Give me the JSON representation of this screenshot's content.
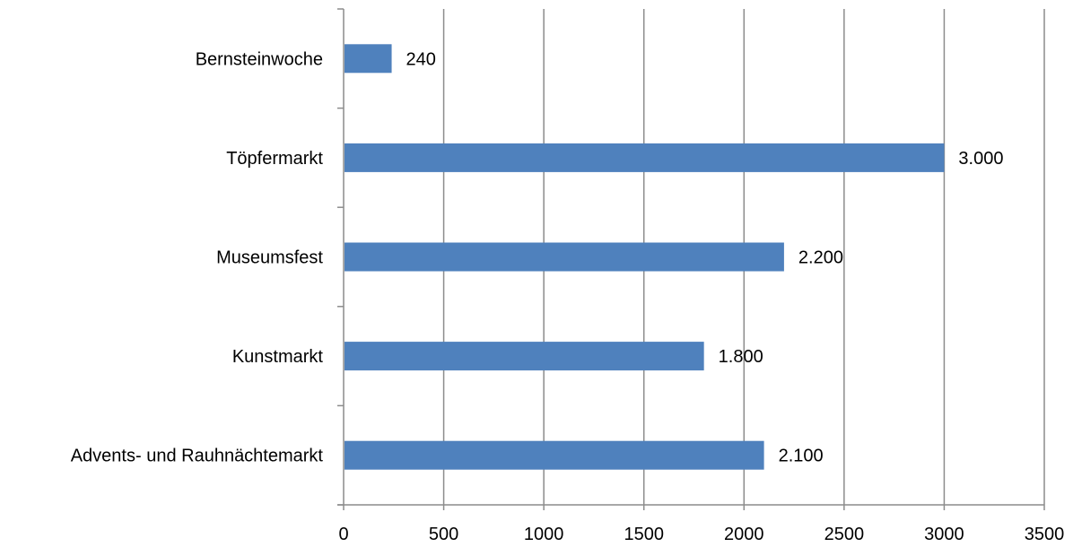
{
  "chart_data": {
    "type": "bar",
    "orientation": "horizontal",
    "title": "",
    "xlabel": "",
    "ylabel": "",
    "categories": [
      "Bernsteinwoche",
      "Töpfermarkt",
      "Museumsfest",
      "Kunstmarkt",
      "Advents- und Rauhnächtemarkt"
    ],
    "values": [
      240,
      3000,
      2200,
      1800,
      2100
    ],
    "data_labels": [
      "240",
      "3.000",
      "2.200",
      "1.800",
      "2.100"
    ],
    "xlim": [
      0,
      3500
    ],
    "xticks": [
      0,
      500,
      1000,
      1500,
      2000,
      2500,
      3000,
      3500
    ],
    "xtick_labels": [
      "0",
      "500",
      "1000",
      "1500",
      "2000",
      "2500",
      "3000",
      "3500"
    ],
    "grid": "vertical",
    "legend": "none",
    "bar_color": "#4f81bd",
    "grid_color": "#8c8c8c"
  }
}
